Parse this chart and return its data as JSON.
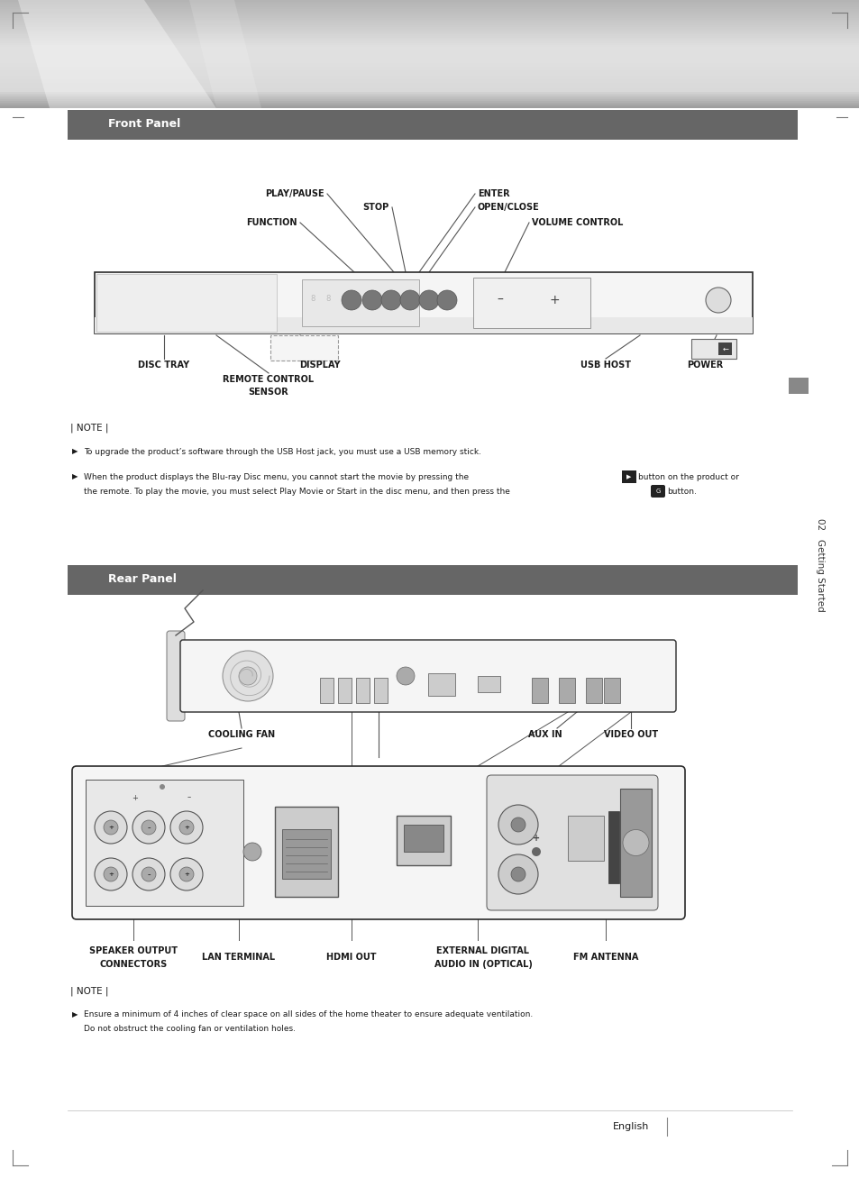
{
  "bg_color": "#ffffff",
  "page_width": 9.54,
  "page_height": 13.07,
  "front_panel_title": "Front Panel",
  "rear_panel_title": "Rear Panel",
  "note_label": "| NOTE |",
  "note1": "To upgrade the product’s software through the USB Host jack, you must use a USB memory stick.",
  "note2a": "When the product displays the Blu-ray Disc menu, you cannot start the movie by pressing the",
  "note2b": "button on the product or",
  "note2c": "the remote. To play the movie, you must select Play Movie or Start in the disc menu, and then press the",
  "note2d": "button.",
  "note3a": "Ensure a minimum of 4 inches of clear space on all sides of the home theater to ensure adequate ventilation.",
  "note3b": "Do not obstruct the cooling fan or ventilation holes.",
  "sidebar_text": "02   Getting Started",
  "footer_text": "English",
  "section_gray": "#666666",
  "dark_text": "#1a1a1a",
  "mid_gray": "#888888",
  "light_gray": "#cccccc",
  "device_fill": "#f8f8f8",
  "device_stroke": "#333333"
}
